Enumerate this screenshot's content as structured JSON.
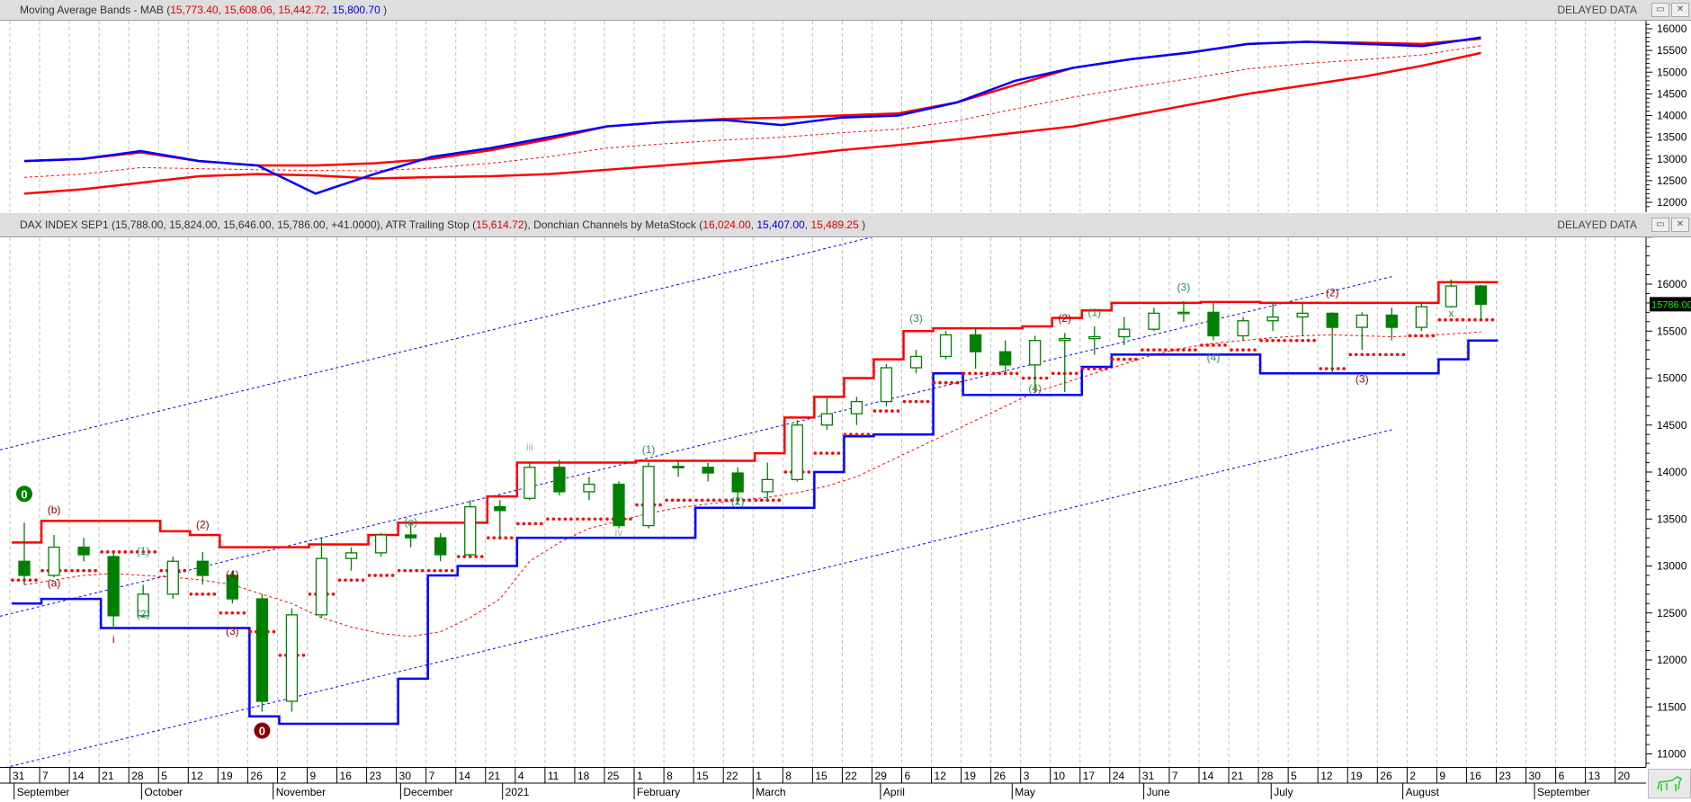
{
  "upper_panel": {
    "title": "Moving Average Bands - MAB (",
    "values": [
      {
        "text": "15,773.40",
        "color": "#e00000"
      },
      {
        "text": "15,608.06",
        "color": "#e00000"
      },
      {
        "text": "15,442.72",
        "color": "#e00000"
      },
      {
        "text": "15,800.70",
        "color": "#0000e0"
      }
    ],
    "close_paren": " )",
    "status": "DELAYED DATA",
    "restore_icon": "restore-icon",
    "close_icon": "close-icon"
  },
  "lower_panel": {
    "title": "DAX INDEX SEP1 (15,788.00, 15,824.00, 15,646.00, 15,786.00, +41.0000), ATR Trailing Stop (",
    "atr_value": "15,614.72",
    "donchian_label": "), Donchian Channels by MetaStock (",
    "donchian_upper": "16,024.00",
    "donchian_lower": "15,407.00",
    "donchian_mid": "15,489.25",
    "close_paren": " )",
    "status": "DELAYED DATA",
    "last_price_tag": "15786.00"
  },
  "colors": {
    "up_down_candle": "#008000",
    "band_red": "#ff0000",
    "ma_blue": "#0000ff",
    "last_tag_bg": "#000000",
    "last_tag_text": "#00ff00"
  },
  "corner_icon": "bull-icon",
  "chart_data": [
    {
      "type": "line",
      "title": "Moving Average Bands - MAB",
      "ylim": [
        11800,
        16200
      ],
      "y_ticks": [
        12000,
        12500,
        13000,
        13500,
        14000,
        14500,
        15000,
        15500,
        16000
      ],
      "grid": "vertical dashed",
      "series": [
        {
          "color": "#ff0000",
          "style": "solid",
          "values": [
            12950,
            13000,
            13150,
            12950,
            12850,
            12850,
            12900,
            13000,
            13200,
            13450,
            13750,
            13850,
            13920,
            13950,
            14000,
            14050,
            14300,
            14700,
            15100,
            15300,
            15450,
            15650,
            15700,
            15680,
            15650,
            15773
          ]
        },
        {
          "color": "#ff0000",
          "style": "dashed",
          "values": [
            12575,
            12650,
            12800,
            12775,
            12750,
            12735,
            12725,
            12790,
            12900,
            13050,
            13250,
            13350,
            13435,
            13500,
            13600,
            13685,
            13875,
            14150,
            14425,
            14650,
            14850,
            15075,
            15200,
            15290,
            15400,
            15608
          ]
        },
        {
          "color": "#ff0000",
          "style": "solid",
          "values": [
            12200,
            12300,
            12450,
            12600,
            12650,
            12620,
            12550,
            12580,
            12600,
            12650,
            12750,
            12850,
            12950,
            13050,
            13200,
            13320,
            13450,
            13600,
            13750,
            14000,
            14250,
            14500,
            14700,
            14900,
            15150,
            15443
          ]
        },
        {
          "color": "#0000ff",
          "style": "solid",
          "values": [
            12950,
            13000,
            13180,
            12950,
            12850,
            12200,
            12650,
            13050,
            13250,
            13500,
            13750,
            13850,
            13900,
            13780,
            13950,
            14000,
            14300,
            14800,
            15100,
            15300,
            15450,
            15650,
            15700,
            15650,
            15600,
            15800
          ]
        }
      ]
    },
    {
      "type": "candlestick",
      "title": "DAX INDEX SEP1",
      "ylim": [
        10800,
        16500
      ],
      "y_ticks": [
        11000,
        11500,
        12000,
        12500,
        13000,
        13500,
        14000,
        14500,
        15000,
        15500,
        16000
      ],
      "grid": "vertical dashed",
      "dates": [
        "2020-08-31",
        "2020-09-07",
        "2020-09-14",
        "2020-09-21",
        "2020-09-28",
        "2020-10-05",
        "2020-10-12",
        "2020-10-19",
        "2020-10-26",
        "2020-11-02",
        "2020-11-09",
        "2020-11-16",
        "2020-11-23",
        "2020-11-30",
        "2020-12-07",
        "2020-12-14",
        "2020-12-21",
        "2021-01-04",
        "2021-01-11",
        "2021-01-18",
        "2021-01-25",
        "2021-02-01",
        "2021-02-08",
        "2021-02-15",
        "2021-02-22",
        "2021-03-01",
        "2021-03-08",
        "2021-03-15",
        "2021-03-22",
        "2021-03-29",
        "2021-04-06",
        "2021-04-12",
        "2021-04-19",
        "2021-04-26",
        "2021-05-03",
        "2021-05-10",
        "2021-05-17",
        "2021-05-24",
        "2021-05-31",
        "2021-06-07",
        "2021-06-14",
        "2021-06-21",
        "2021-06-28",
        "2021-07-05",
        "2021-07-12",
        "2021-07-19",
        "2021-07-26",
        "2021-08-02",
        "2021-08-09",
        "2021-08-16"
      ],
      "open": [
        13050,
        12900,
        13200,
        13100,
        12470,
        12700,
        13050,
        12900,
        12650,
        11560,
        12480,
        13080,
        13140,
        13330,
        13300,
        13120,
        13630,
        13720,
        14050,
        13790,
        13870,
        13430,
        14060,
        14050,
        13990,
        13790,
        13920,
        14500,
        14620,
        14750,
        15110,
        15230,
        15460,
        15280,
        15140,
        15400,
        15420,
        15440,
        15520,
        15690,
        15700,
        15450,
        15610,
        15650,
        15690,
        15540,
        15670,
        15540,
        15760,
        15980
      ],
      "high": [
        13460,
        13330,
        13300,
        13150,
        12800,
        13100,
        13150,
        12950,
        12700,
        12550,
        13300,
        13200,
        13350,
        13450,
        13350,
        13700,
        13700,
        14100,
        14130,
        13950,
        13900,
        14100,
        14120,
        14100,
        14050,
        14100,
        14550,
        14800,
        14800,
        15150,
        15300,
        15500,
        15530,
        15400,
        15450,
        15480,
        15550,
        15650,
        15750,
        15820,
        15800,
        15650,
        15810,
        15800,
        15700,
        15700,
        15750,
        15800,
        16050,
        15990
      ],
      "low": [
        12800,
        12880,
        13050,
        12330,
        12450,
        12650,
        12800,
        12600,
        11450,
        11450,
        12450,
        12950,
        13100,
        13200,
        13050,
        13100,
        13300,
        13700,
        13750,
        13700,
        13400,
        13400,
        13950,
        13900,
        13650,
        13700,
        13900,
        14450,
        14500,
        14700,
        15050,
        15200,
        15100,
        15050,
        14850,
        14850,
        15250,
        15350,
        15500,
        15600,
        15400,
        15400,
        15500,
        15450,
        15050,
        15300,
        15400,
        15500,
        15750,
        15620
      ],
      "close": [
        12900,
        13200,
        13120,
        12470,
        12700,
        13050,
        12900,
        12650,
        11560,
        12480,
        13080,
        13140,
        13330,
        13300,
        13120,
        13630,
        13590,
        14050,
        13790,
        13870,
        13430,
        14060,
        14050,
        13990,
        13790,
        13920,
        14500,
        14620,
        14750,
        15110,
        15230,
        15460,
        15280,
        15140,
        15400,
        15420,
        15440,
        15520,
        15690,
        15700,
        15450,
        15610,
        15650,
        15690,
        15540,
        15670,
        15540,
        15760,
        15980,
        15786
      ],
      "donchian_upper": [
        13250,
        13480,
        13480,
        13480,
        13480,
        13370,
        13330,
        13200,
        13200,
        13200,
        13230,
        13230,
        13330,
        13460,
        13460,
        13460,
        13740,
        14100,
        14100,
        14100,
        14100,
        14120,
        14120,
        14120,
        14120,
        14200,
        14580,
        14800,
        15000,
        15200,
        15500,
        15530,
        15530,
        15530,
        15550,
        15640,
        15720,
        15800,
        15800,
        15800,
        15810,
        15810,
        15800,
        15800,
        15800,
        15800,
        15800,
        15800,
        16020,
        16020
      ],
      "donchian_lower": [
        12600,
        12650,
        12650,
        12340,
        12340,
        12340,
        12340,
        12340,
        11400,
        11320,
        11320,
        11320,
        11320,
        11800,
        12900,
        13000,
        13000,
        13300,
        13300,
        13300,
        13300,
        13300,
        13300,
        13620,
        13620,
        13620,
        13620,
        14000,
        14380,
        14400,
        14400,
        15050,
        14820,
        14820,
        14820,
        14820,
        15120,
        15250,
        15250,
        15250,
        15250,
        15250,
        15050,
        15050,
        15050,
        15050,
        15050,
        15050,
        15200,
        15400
      ],
      "atr_trailing_stop": [
        12850,
        12950,
        12950,
        13150,
        13150,
        12950,
        12700,
        12500,
        12300,
        12050,
        12700,
        12850,
        12900,
        12950,
        12950,
        13100,
        13300,
        13450,
        13500,
        13500,
        13500,
        13650,
        13700,
        13700,
        13700,
        13700,
        14000,
        14200,
        14400,
        14650,
        14750,
        14950,
        15050,
        15050,
        15000,
        15050,
        15100,
        15200,
        15300,
        15300,
        15350,
        15300,
        15400,
        15400,
        15100,
        15250,
        15250,
        15450,
        15620,
        15620
      ],
      "moving_average": [
        12800,
        12850,
        12900,
        12920,
        12900,
        12880,
        12850,
        12800,
        12700,
        12600,
        12450,
        12350,
        12280,
        12250,
        12300,
        12450,
        12650,
        13050,
        13250,
        13400,
        13480,
        13560,
        13620,
        13660,
        13700,
        13730,
        13780,
        13850,
        13950,
        14100,
        14250,
        14400,
        14550,
        14700,
        14850,
        14950,
        15050,
        15150,
        15250,
        15320,
        15370,
        15400,
        15430,
        15450,
        15460,
        15450,
        15440,
        15450,
        15470,
        15490
      ],
      "regression_channel": {
        "start_date": "2020-08-31",
        "end_date": "2021-07-26",
        "upper": [
          14235,
          17850
        ],
        "mid": [
          12465,
          16080
        ],
        "lower": [
          10840,
          14450
        ]
      },
      "wave_labels": [
        {
          "date": "2020-08-31",
          "price": 13720,
          "text": "0",
          "color": "#008000",
          "circle": true
        },
        {
          "date": "2020-09-07",
          "price": 13560,
          "text": "(b)",
          "color": "#8b0000"
        },
        {
          "date": "2020-09-07",
          "price": 12780,
          "text": "(a)",
          "color": "#8b0000"
        },
        {
          "date": "2020-09-21",
          "price": 12180,
          "text": "i",
          "color": "#8b0000"
        },
        {
          "date": "2020-09-28",
          "price": 13120,
          "text": "(1)",
          "color": "#2e8b57"
        },
        {
          "date": "2020-09-28",
          "price": 12450,
          "text": "(2)",
          "color": "#2e8b57"
        },
        {
          "date": "2020-10-12",
          "price": 13400,
          "text": "(2)",
          "color": "#8b0000"
        },
        {
          "date": "2020-10-19",
          "price": 12870,
          "text": "(4)",
          "color": "#8b0000"
        },
        {
          "date": "2020-10-19",
          "price": 12270,
          "text": "(3)",
          "color": "#8b0000"
        },
        {
          "date": "2020-10-26",
          "price": 11200,
          "text": "0",
          "color": "#8b0000",
          "circle": true
        },
        {
          "date": "2020-11-30",
          "price": 13430,
          "text": "(a)",
          "color": "#2e8b57"
        },
        {
          "date": "2021-01-04",
          "price": 14230,
          "text": "iii",
          "color": "#aaaaaa"
        },
        {
          "date": "2021-01-25",
          "price": 13320,
          "text": "iv",
          "color": "#aaaaaa"
        },
        {
          "date": "2021-02-01",
          "price": 14200,
          "text": "(1)",
          "color": "#2e8b57"
        },
        {
          "date": "2021-02-22",
          "price": 13650,
          "text": "(2)",
          "color": "#2e8b57"
        },
        {
          "date": "2021-04-06",
          "price": 15600,
          "text": "(3)",
          "color": "#2e8b57"
        },
        {
          "date": "2021-05-03",
          "price": 14850,
          "text": "(4)",
          "color": "#2e8b57"
        },
        {
          "date": "2021-05-10",
          "price": 15600,
          "text": "(2)",
          "color": "#8b0000"
        },
        {
          "date": "2021-05-17",
          "price": 15660,
          "text": "(1)",
          "color": "#2e8b57"
        },
        {
          "date": "2021-06-07",
          "price": 15930,
          "text": "(3)",
          "color": "#2e8b57"
        },
        {
          "date": "2021-06-14",
          "price": 15180,
          "text": "(4)",
          "color": "#2e8b57"
        },
        {
          "date": "2021-07-12",
          "price": 15870,
          "text": "(2)",
          "color": "#8b0000"
        },
        {
          "date": "2021-07-19",
          "price": 14950,
          "text": "(3)",
          "color": "#8b0000"
        },
        {
          "date": "2021-08-09",
          "price": 15650,
          "text": "x",
          "color": "#2e8b57"
        }
      ]
    }
  ],
  "date_axis": {
    "days": [
      "31",
      "7",
      "14",
      "21",
      "28",
      "5",
      "12",
      "19",
      "26",
      "2",
      "9",
      "16",
      "23",
      "30",
      "7",
      "14",
      "21",
      "4",
      "11",
      "18",
      "25",
      "1",
      "8",
      "15",
      "22",
      "1",
      "8",
      "15",
      "22",
      "29",
      "6",
      "12",
      "19",
      "26",
      "3",
      "10",
      "17",
      "24",
      "31",
      "7",
      "14",
      "21",
      "28",
      "5",
      "12",
      "19",
      "26",
      "2",
      "9",
      "16",
      "23",
      "30",
      "6",
      "13",
      "20"
    ],
    "months": [
      "September",
      "October",
      "November",
      "December",
      "2021",
      "February",
      "March",
      "April",
      "May",
      "June",
      "July",
      "August",
      "September"
    ]
  }
}
